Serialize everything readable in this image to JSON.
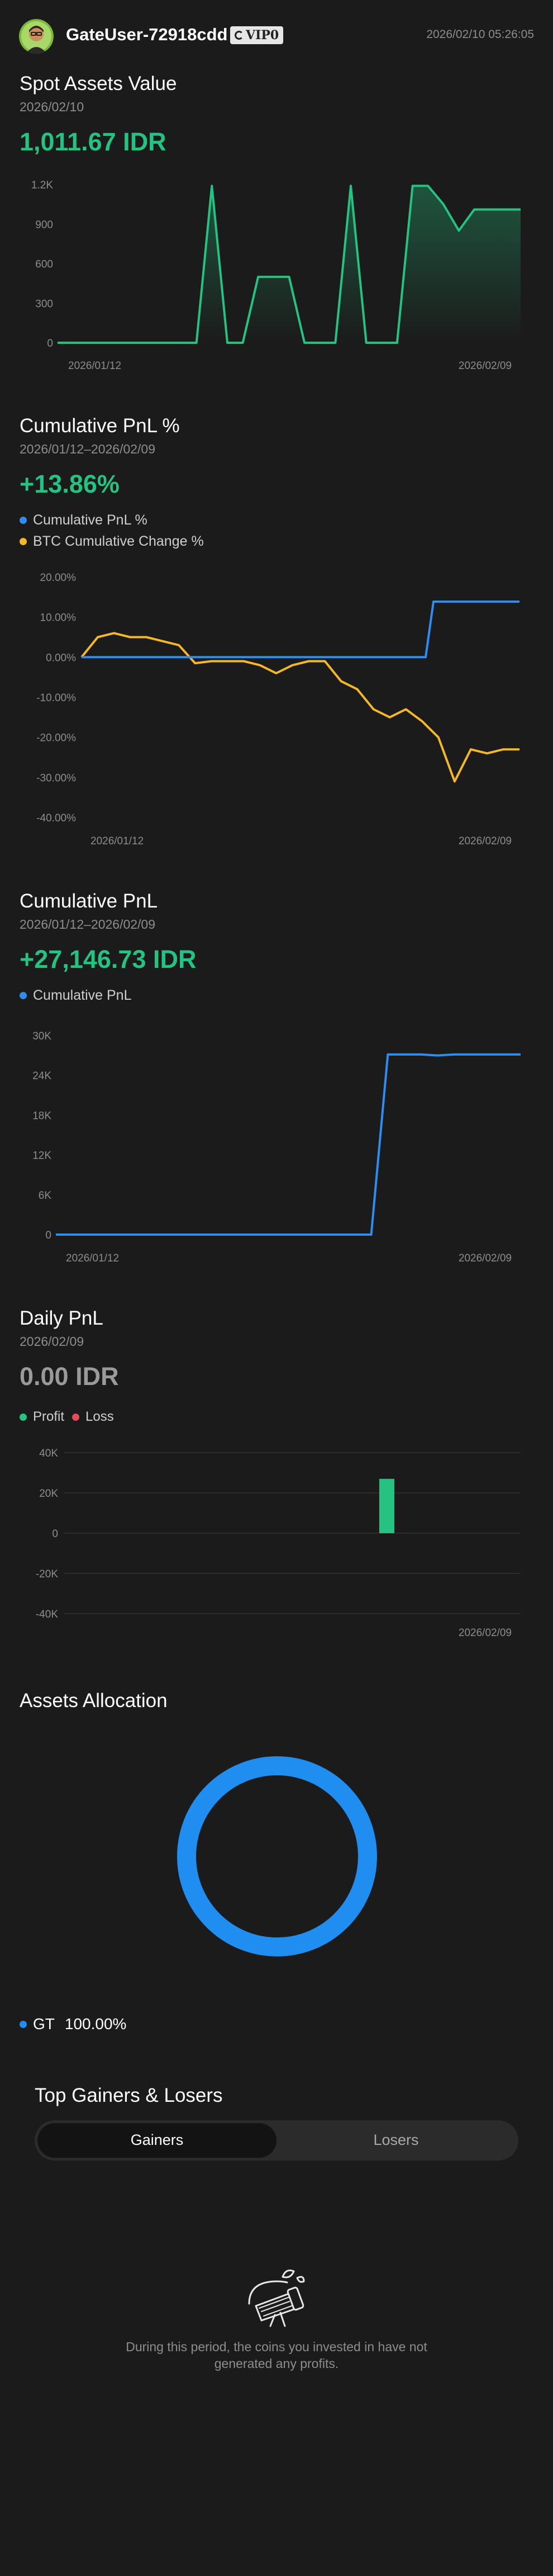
{
  "header": {
    "username": "GateUser-72918cdd",
    "vip_label": "VIP0",
    "timestamp": "2026/02/10 05:26:05"
  },
  "spot": {
    "title": "Spot Assets Value",
    "date": "2026/02/10",
    "value": "1,011.67 IDR",
    "chart_data": {
      "type": "area",
      "x_labels": [
        "2026/01/12",
        "2026/02/09"
      ],
      "y_ticks": [
        "0",
        "300",
        "600",
        "900",
        "1.2K"
      ],
      "ylim": [
        0,
        1200
      ],
      "values": [
        0,
        0,
        0,
        0,
        0,
        0,
        0,
        0,
        0,
        0,
        1190,
        0,
        0,
        500,
        500,
        500,
        0,
        0,
        0,
        1190,
        0,
        0,
        0,
        1190,
        1190,
        1050,
        850,
        1011,
        1011,
        1011,
        1011
      ]
    }
  },
  "cum_pct": {
    "title": "Cumulative PnL %",
    "date": "2026/01/12–2026/02/09",
    "value": "+13.86%",
    "legend": [
      "Cumulative PnL %",
      "BTC Cumulative Change %"
    ],
    "colors": [
      "#2f8cf0",
      "#f3b82a"
    ],
    "chart_data": {
      "type": "line",
      "x_labels": [
        "2026/01/12",
        "2026/02/09"
      ],
      "y_ticks": [
        "20.00%",
        "10.00%",
        "0.00%",
        "-10.00%",
        "-20.00%",
        "-30.00%",
        "-40.00%"
      ],
      "ylim": [
        -40,
        20
      ],
      "series": [
        {
          "name": "Cumulative PnL %",
          "values": [
            0,
            0,
            0,
            0,
            0,
            0,
            0,
            0,
            0,
            0,
            0,
            0,
            0,
            0,
            0,
            0,
            0,
            0,
            0,
            0,
            0,
            0,
            0,
            0,
            0,
            0,
            0,
            0,
            0,
            0,
            0,
            0,
            0,
            0,
            0,
            0,
            0,
            0,
            0,
            0,
            0,
            0,
            0,
            0,
            0,
            13.86,
            13.86,
            13.86,
            13.86,
            13.86,
            13.86,
            13.86,
            13.86,
            13.86,
            13.86,
            13.86,
            13.86
          ]
        },
        {
          "name": "BTC Cumulative Change %",
          "values": [
            0,
            5,
            6,
            5,
            5,
            4,
            3,
            -1.5,
            -1,
            -1,
            -1,
            -2,
            -4,
            -2,
            -1,
            -1,
            -6,
            -8,
            -13,
            -15,
            -13,
            -16,
            -20,
            -31,
            -23,
            -24,
            -23,
            -23
          ]
        }
      ]
    }
  },
  "cum_pnl": {
    "title": "Cumulative PnL",
    "date": "2026/01/12–2026/02/09",
    "value": "+27,146.73 IDR",
    "legend": [
      "Cumulative PnL"
    ],
    "color": "#2f8cf0",
    "chart_data": {
      "type": "line",
      "x_labels": [
        "2026/01/12",
        "2026/02/09"
      ],
      "y_ticks": [
        "0",
        "6K",
        "12K",
        "18K",
        "24K",
        "30K"
      ],
      "ylim": [
        0,
        30000
      ],
      "series": [
        {
          "name": "Cumulative PnL",
          "values": [
            0,
            0,
            0,
            0,
            0,
            0,
            0,
            0,
            0,
            0,
            0,
            0,
            0,
            0,
            0,
            0,
            0,
            0,
            0,
            0,
            27146,
            27146,
            27146,
            27000,
            27146,
            27146,
            27146,
            27146,
            27146
          ]
        }
      ]
    }
  },
  "daily": {
    "title": "Daily PnL",
    "date": "2026/02/09",
    "value": "0.00 IDR",
    "legend": [
      "Profit",
      "Loss"
    ],
    "colors": [
      "#25c281",
      "#e34b57"
    ],
    "chart_data": {
      "type": "bar",
      "x_labels": [
        "2026/02/09"
      ],
      "y_ticks": [
        "40K",
        "20K",
        "0",
        "-20K",
        "-40K"
      ],
      "ylim": [
        -40000,
        40000
      ],
      "values": [
        0,
        0,
        0,
        0,
        0,
        0,
        0,
        0,
        0,
        0,
        0,
        0,
        0,
        0,
        0,
        0,
        0,
        0,
        0,
        0,
        27000,
        0,
        0,
        0,
        0,
        0,
        0,
        0,
        0
      ]
    }
  },
  "allocation": {
    "title": "Assets Allocation",
    "items": [
      {
        "name": "GT",
        "percent": "100.00%",
        "color": "#1f8ef0"
      }
    ]
  },
  "gainers": {
    "title": "Top Gainers & Losers",
    "tabs": [
      "Gainers",
      "Losers"
    ],
    "empty_message": "During this period, the coins you invested in have not generated any profits."
  }
}
